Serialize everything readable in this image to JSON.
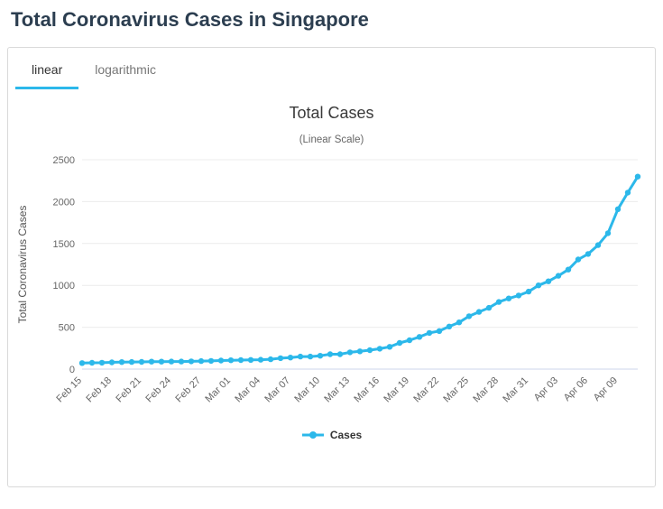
{
  "page": {
    "title": "Total Coronavirus Cases in Singapore"
  },
  "tabs": {
    "linear": "linear",
    "logarithmic": "logarithmic",
    "active": "linear"
  },
  "colors": {
    "accent": "#2cb8ea",
    "series": "#2cb8ea",
    "title_text": "#2c3e50"
  },
  "legend": {
    "cases_label": "Cases"
  },
  "chart_data": {
    "type": "line",
    "title": "Total Cases",
    "subtitle": "(Linear Scale)",
    "ylabel": "Total Coronavirus Cases",
    "xlabel": "",
    "ylim": [
      0,
      2500
    ],
    "yticks": [
      0,
      500,
      1000,
      1500,
      2000,
      2500
    ],
    "grid": true,
    "legend_position": "bottom",
    "xtick_every": 3,
    "xtick_labels": [
      "Feb 15",
      "Feb 18",
      "Feb 21",
      "Feb 24",
      "Feb 27",
      "Mar 01",
      "Mar 04",
      "Mar 07",
      "Mar 10",
      "Mar 13",
      "Mar 16",
      "Mar 19",
      "Mar 22",
      "Mar 25",
      "Mar 28",
      "Mar 31",
      "Apr 03",
      "Apr 06",
      "Apr 09"
    ],
    "x": [
      "Feb 15",
      "Feb 16",
      "Feb 17",
      "Feb 18",
      "Feb 19",
      "Feb 20",
      "Feb 21",
      "Feb 22",
      "Feb 23",
      "Feb 24",
      "Feb 25",
      "Feb 26",
      "Feb 27",
      "Feb 28",
      "Feb 29",
      "Mar 01",
      "Mar 02",
      "Mar 03",
      "Mar 04",
      "Mar 05",
      "Mar 06",
      "Mar 07",
      "Mar 08",
      "Mar 09",
      "Mar 10",
      "Mar 11",
      "Mar 12",
      "Mar 13",
      "Mar 14",
      "Mar 15",
      "Mar 16",
      "Mar 17",
      "Mar 18",
      "Mar 19",
      "Mar 20",
      "Mar 21",
      "Mar 22",
      "Mar 23",
      "Mar 24",
      "Mar 25",
      "Mar 26",
      "Mar 27",
      "Mar 28",
      "Mar 29",
      "Mar 30",
      "Mar 31",
      "Apr 01",
      "Apr 02",
      "Apr 03",
      "Apr 04",
      "Apr 05",
      "Apr 06",
      "Apr 07",
      "Apr 08",
      "Apr 09",
      "Apr 10",
      "Apr 11"
    ],
    "series": [
      {
        "name": "Cases",
        "color": "#2cb8ea",
        "values": [
          72,
          75,
          77,
          81,
          84,
          85,
          86,
          89,
          89,
          90,
          91,
          93,
          96,
          98,
          102,
          106,
          108,
          110,
          112,
          117,
          130,
          138,
          150,
          150,
          160,
          178,
          178,
          200,
          212,
          226,
          243,
          266,
          313,
          345,
          385,
          432,
          455,
          509,
          558,
          631,
          683,
          732,
          802,
          844,
          879,
          926,
          1000,
          1049,
          1114,
          1189,
          1309,
          1375,
          1481,
          1623,
          1910,
          2108,
          2299
        ]
      }
    ]
  }
}
